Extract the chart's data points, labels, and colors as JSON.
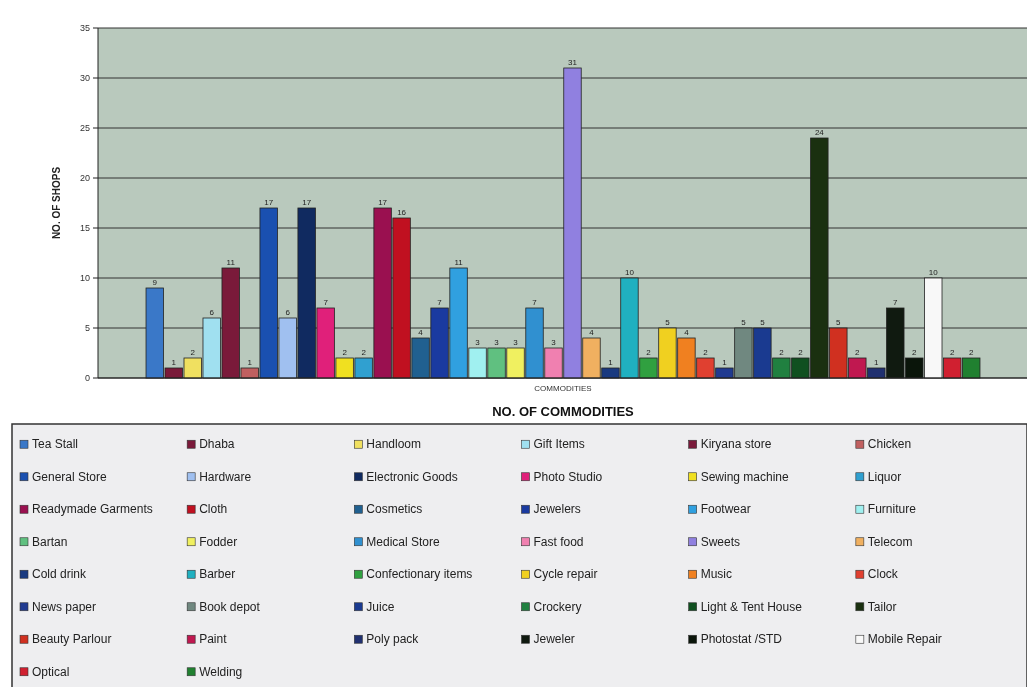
{
  "chart_data": {
    "type": "bar",
    "title": "NO. OF COMMODITIES",
    "xlabel": "COMMODITIES",
    "ylabel": "NO. OF SHOPS",
    "categories": [
      null
    ],
    "ylim": [
      0,
      35
    ],
    "yticks": [
      0,
      5,
      10,
      15,
      20,
      25,
      30,
      35
    ],
    "grid": "y",
    "legend": "bottom",
    "data_labels": true,
    "series": [
      {
        "name": "Tea Stall",
        "color": "#3a78c8",
        "values": [
          9
        ]
      },
      {
        "name": "Dhaba",
        "color": "#7a1a3a",
        "values": [
          1
        ]
      },
      {
        "name": "Handloom",
        "color": "#f0e060",
        "values": [
          2
        ]
      },
      {
        "name": "Gift Items",
        "color": "#a0e0f0",
        "values": [
          6
        ]
      },
      {
        "name": "Kiryana store",
        "color": "#7a1a3a",
        "values": [
          11
        ]
      },
      {
        "name": "Chicken",
        "color": "#c06060",
        "values": [
          1
        ]
      },
      {
        "name": "General Store",
        "color": "#1a50b0",
        "values": [
          17
        ]
      },
      {
        "name": "Hardware",
        "color": "#a0c0f0",
        "values": [
          6
        ]
      },
      {
        "name": "Electronic Goods",
        "color": "#102a60",
        "values": [
          17
        ]
      },
      {
        "name": "Photo Studio",
        "color": "#e0207a",
        "values": [
          7
        ]
      },
      {
        "name": "Sewing machine",
        "color": "#f0e020",
        "values": [
          2
        ]
      },
      {
        "name": "Liquor",
        "color": "#30a0d0",
        "values": [
          2
        ]
      },
      {
        "name": "Readymade Garments",
        "color": "#9a1050",
        "values": [
          17
        ]
      },
      {
        "name": "Cloth",
        "color": "#c01020",
        "values": [
          16
        ]
      },
      {
        "name": "Cosmetics",
        "color": "#206090",
        "values": [
          4
        ]
      },
      {
        "name": "Jewelers",
        "color": "#1a3aa0",
        "values": [
          7
        ]
      },
      {
        "name": "Footwear",
        "color": "#30a0e0",
        "values": [
          11
        ]
      },
      {
        "name": "Furniture",
        "color": "#a0f0f0",
        "values": [
          3
        ]
      },
      {
        "name": "Bartan",
        "color": "#60c080",
        "values": [
          3
        ]
      },
      {
        "name": "Fodder",
        "color": "#f0f060",
        "values": [
          3
        ]
      },
      {
        "name": "Medical Store",
        "color": "#3090d0",
        "values": [
          7
        ]
      },
      {
        "name": "Fast food",
        "color": "#f080b0",
        "values": [
          3
        ]
      },
      {
        "name": "Sweets",
        "color": "#9080e0",
        "values": [
          31
        ]
      },
      {
        "name": "Telecom",
        "color": "#f0b060",
        "values": [
          4
        ]
      },
      {
        "name": "Cold drink",
        "color": "#1a3a80",
        "values": [
          1
        ]
      },
      {
        "name": "Barber",
        "color": "#20b0c0",
        "values": [
          10
        ]
      },
      {
        "name": "Confectionary items",
        "color": "#30a040",
        "values": [
          2
        ]
      },
      {
        "name": "Cycle repair",
        "color": "#f0d020",
        "values": [
          5
        ]
      },
      {
        "name": "Music",
        "color": "#f08020",
        "values": [
          4
        ]
      },
      {
        "name": "Clock",
        "color": "#e04030",
        "values": [
          2
        ]
      },
      {
        "name": "News paper",
        "color": "#203a90",
        "values": [
          1
        ]
      },
      {
        "name": "Book depot",
        "color": "#708880",
        "values": [
          5
        ]
      },
      {
        "name": "Juice",
        "color": "#1a3a90",
        "values": [
          5
        ]
      },
      {
        "name": "Crockery",
        "color": "#208040",
        "values": [
          2
        ]
      },
      {
        "name": "Light & Tent House",
        "color": "#105020",
        "values": [
          2
        ]
      },
      {
        "name": "Tailor",
        "color": "#1a3010",
        "values": [
          24
        ]
      },
      {
        "name": "Beauty Parlour",
        "color": "#d03020",
        "values": [
          5
        ]
      },
      {
        "name": "Paint",
        "color": "#c01850",
        "values": [
          2
        ]
      },
      {
        "name": "Poly pack",
        "color": "#203070",
        "values": [
          1
        ]
      },
      {
        "name": "Jeweler",
        "color": "#101a10",
        "values": [
          7
        ]
      },
      {
        "name": "Photostat /STD",
        "color": "#0a150a",
        "values": [
          2
        ]
      },
      {
        "name": "Mobile Repair",
        "color": "#f8f8f8",
        "values": [
          10
        ]
      },
      {
        "name": "Optical",
        "color": "#d02030",
        "values": [
          2
        ]
      },
      {
        "name": "Welding",
        "color": "#208030",
        "values": [
          2
        ]
      }
    ]
  }
}
